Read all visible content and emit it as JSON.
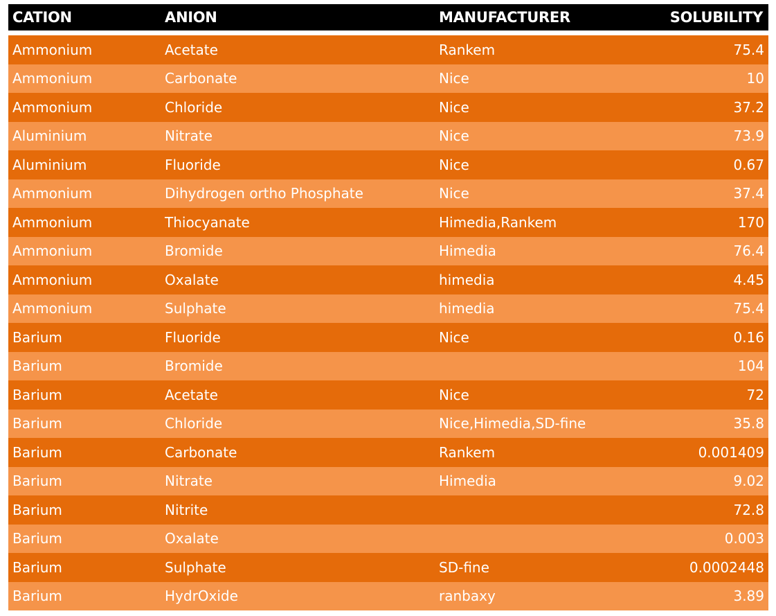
{
  "table": {
    "headers": {
      "cation": "CATION",
      "anion": "ANION",
      "manufacturer": "MANUFACTURER",
      "solubility": "SOLUBILITY"
    },
    "colors": {
      "header_bg": "#000000",
      "row_dark": "#e56b0a",
      "row_light": "#f5944a",
      "text": "#ffffff"
    },
    "rows": [
      {
        "cation": "Ammonium",
        "anion": "Acetate",
        "manufacturer": "Rankem",
        "solubility": "75.4"
      },
      {
        "cation": "Ammonium",
        "anion": "Carbonate",
        "manufacturer": "Nice",
        "solubility": "10"
      },
      {
        "cation": "Ammonium",
        "anion": "Chloride",
        "manufacturer": "Nice",
        "solubility": "37.2"
      },
      {
        "cation": "Aluminium",
        "anion": "Nitrate",
        "manufacturer": "Nice",
        "solubility": "73.9"
      },
      {
        "cation": "Aluminium",
        "anion": "Fluoride",
        "manufacturer": "Nice",
        "solubility": "0.67"
      },
      {
        "cation": "Ammonium",
        "anion": "Dihydrogen ortho Phosphate",
        "manufacturer": "Nice",
        "solubility": "37.4"
      },
      {
        "cation": "Ammonium",
        "anion": "Thiocyanate",
        "manufacturer": "Himedia,Rankem",
        "solubility": "170"
      },
      {
        "cation": "Ammonium",
        "anion": "Bromide",
        "manufacturer": "Himedia",
        "solubility": "76.4"
      },
      {
        "cation": "Ammonium",
        "anion": "Oxalate",
        "manufacturer": "himedia",
        "solubility": "4.45"
      },
      {
        "cation": "Ammonium",
        "anion": "Sulphate",
        "manufacturer": "himedia",
        "solubility": "75.4"
      },
      {
        "cation": "Barium",
        "anion": "Fluoride",
        "manufacturer": "Nice",
        "solubility": "0.16"
      },
      {
        "cation": "Barium",
        "anion": "Bromide",
        "manufacturer": "",
        "solubility": "104"
      },
      {
        "cation": "Barium",
        "anion": "Acetate",
        "manufacturer": "Nice",
        "solubility": "72"
      },
      {
        "cation": "Barium",
        "anion": "Chloride",
        "manufacturer": "Nice,Himedia,SD-fine",
        "solubility": "35.8"
      },
      {
        "cation": "Barium",
        "anion": "Carbonate",
        "manufacturer": "Rankem",
        "solubility": "0.001409"
      },
      {
        "cation": "Barium",
        "anion": "Nitrate",
        "manufacturer": "Himedia",
        "solubility": "9.02"
      },
      {
        "cation": "Barium",
        "anion": "Nitrite",
        "manufacturer": "",
        "solubility": "72.8"
      },
      {
        "cation": "Barium",
        "anion": "Oxalate",
        "manufacturer": "",
        "solubility": "0.003"
      },
      {
        "cation": "Barium",
        "anion": "Sulphate",
        "manufacturer": "SD-fine",
        "solubility": "0.0002448"
      },
      {
        "cation": "Barium",
        "anion": "HydrOxide",
        "manufacturer": "ranbaxy",
        "solubility": "3.89"
      }
    ]
  }
}
